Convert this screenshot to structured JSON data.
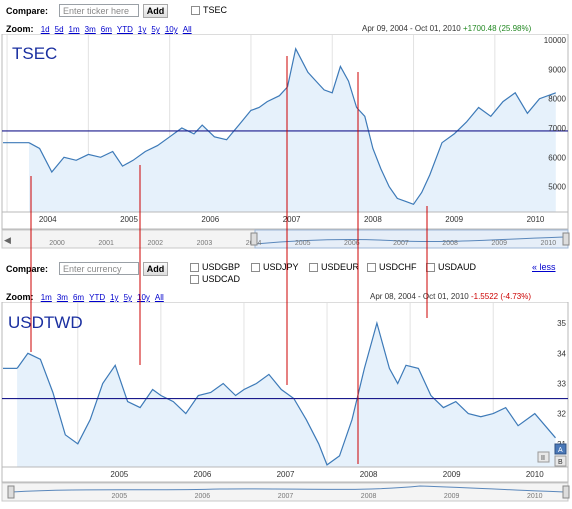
{
  "top": {
    "compare_label": "Compare:",
    "ticker_placeholder": "Enter ticker here",
    "add_label": "Add",
    "checkbox_label": "TSEC",
    "zoom_label": "Zoom:",
    "zoom_links": [
      "1d",
      "5d",
      "1m",
      "3m",
      "6m",
      "YTD",
      "1y",
      "5y",
      "10y",
      "All"
    ],
    "range_text": "Apr 09, 2004  -  Oct 01, 2010",
    "change_text": "+1700.48 (25.98%)"
  },
  "bottom": {
    "compare_label": "Compare:",
    "currency_placeholder": "Enter currency",
    "add_label": "Add",
    "currencies": [
      "USDGBP",
      "USDJPY",
      "USDEUR",
      "USDCHF",
      "USDAUD",
      "USDCAD"
    ],
    "less_link": "« less",
    "zoom_label": "Zoom:",
    "zoom_links": [
      "1m",
      "3m",
      "6m",
      "YTD",
      "1y",
      "5y",
      "10y",
      "All"
    ],
    "range_text": "Apr 08, 2004  -  Oct 01, 2010",
    "change_text": "-1.5522 (-4.73%)"
  },
  "colors": {
    "line": "#3d7ab8",
    "fill": "#e6f1fb",
    "hline": "#1a1a8c",
    "vline": "#cc0000",
    "grid": "#dcdcdc",
    "label": "#1a2fa0"
  },
  "chart_data": [
    {
      "type": "area",
      "title": "TSEC",
      "x": [
        2004.27,
        2004.4,
        2004.55,
        2004.7,
        2004.85,
        2005.0,
        2005.15,
        2005.3,
        2005.42,
        2005.55,
        2005.7,
        2005.85,
        2006.0,
        2006.15,
        2006.3,
        2006.4,
        2006.55,
        2006.7,
        2006.85,
        2007.0,
        2007.1,
        2007.2,
        2007.35,
        2007.45,
        2007.55,
        2007.7,
        2007.8,
        2007.9,
        2008.0,
        2008.1,
        2008.2,
        2008.3,
        2008.4,
        2008.5,
        2008.6,
        2008.7,
        2008.8,
        2008.9,
        2009.0,
        2009.1,
        2009.2,
        2009.35,
        2009.5,
        2009.65,
        2009.8,
        2009.95,
        2010.1,
        2010.25,
        2010.4,
        2010.55,
        2010.75
      ],
      "values": [
        6500,
        6300,
        5500,
        6000,
        5900,
        6100,
        6000,
        6200,
        5700,
        5900,
        6200,
        6400,
        6700,
        7000,
        6800,
        7100,
        6700,
        6600,
        7100,
        7600,
        7700,
        7900,
        8100,
        8400,
        9700,
        8900,
        8600,
        8300,
        8200,
        9100,
        8600,
        7700,
        7400,
        6300,
        5600,
        5000,
        4600,
        4500,
        4400,
        4800,
        5400,
        6500,
        6800,
        7200,
        7700,
        7400,
        7900,
        8200,
        7500,
        8000,
        8200
      ],
      "ylim": [
        4000,
        10000
      ],
      "y_ticks": [
        5000,
        6000,
        7000,
        8000,
        9000,
        10000
      ],
      "x_ticks": [
        "2004",
        "2005",
        "2006",
        "2007",
        "2008",
        "2009",
        "2010"
      ],
      "navigator_ticks": [
        "2000",
        "2001",
        "2002",
        "2003",
        "2004",
        "2005",
        "2006",
        "2007",
        "2008",
        "2009",
        "2010"
      ],
      "reference_line": 6900
    },
    {
      "type": "area",
      "title": "USDTWD",
      "x": [
        2004.27,
        2004.4,
        2004.55,
        2004.7,
        2004.85,
        2005.0,
        2005.15,
        2005.3,
        2005.45,
        2005.6,
        2005.75,
        2005.9,
        2006.0,
        2006.15,
        2006.3,
        2006.45,
        2006.6,
        2006.75,
        2006.9,
        2007.0,
        2007.15,
        2007.3,
        2007.45,
        2007.6,
        2007.75,
        2007.9,
        2008.0,
        2008.15,
        2008.3,
        2008.45,
        2008.6,
        2008.75,
        2008.85,
        2008.95,
        2009.1,
        2009.25,
        2009.4,
        2009.55,
        2009.7,
        2009.85,
        2010.0,
        2010.15,
        2010.3,
        2010.5,
        2010.75
      ],
      "values": [
        33.5,
        34.0,
        33.8,
        32.7,
        31.3,
        31.0,
        31.8,
        33.0,
        33.6,
        32.4,
        32.2,
        32.8,
        32.6,
        32.4,
        32.0,
        32.6,
        32.7,
        33.0,
        32.6,
        32.8,
        33.0,
        33.3,
        32.8,
        32.5,
        31.8,
        31.0,
        30.3,
        30.6,
        31.8,
        33.5,
        35.0,
        33.5,
        33.0,
        33.6,
        33.5,
        32.6,
        32.2,
        32.4,
        32.0,
        31.9,
        32.0,
        32.2,
        31.6,
        32.0,
        31.2
      ],
      "ylim": [
        30,
        35.5
      ],
      "y_ticks": [
        31,
        32,
        33,
        34,
        35
      ],
      "x_ticks": [
        "2005",
        "2006",
        "2007",
        "2008",
        "2009",
        "2010"
      ],
      "navigator_ticks": [
        "2005",
        "2006",
        "2007",
        "2008",
        "2009",
        "2010"
      ],
      "reference_line": 32.5
    }
  ]
}
